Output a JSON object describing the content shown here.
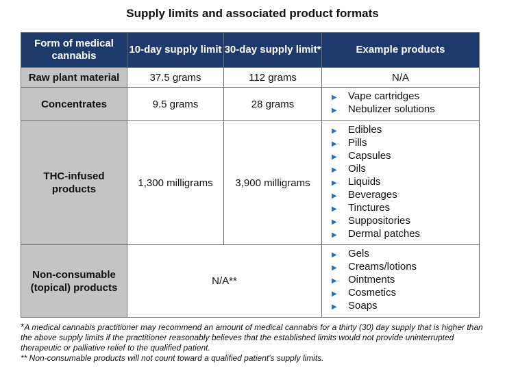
{
  "title": "Supply limits and associated product formats",
  "table": {
    "headers": {
      "form": "Form of medical cannabis",
      "ten_day": "10-day supply limit",
      "thirty_day": "30-day supply limit*",
      "examples": "Example products"
    },
    "rows": [
      {
        "form": "Raw plant material",
        "ten_day": "37.5 grams",
        "thirty_day": "112 grams",
        "examples_text": "N/A"
      },
      {
        "form": "Concentrates",
        "ten_day": "9.5 grams",
        "thirty_day": "28 grams",
        "products": [
          "Vape cartridges",
          "Nebulizer solutions"
        ]
      },
      {
        "form": "THC-infused products",
        "ten_day": "1,300 milligrams",
        "thirty_day": "3,900 milligrams",
        "products": [
          "Edibles",
          "Pills",
          "Capsules",
          "Oils",
          "Liquids",
          "Beverages",
          "Tinctures",
          "Suppositories",
          "Dermal patches"
        ]
      },
      {
        "form": "Non-consumable (topical) products",
        "limit_merged": "N/A**",
        "products": [
          "Gels",
          "Creams/lotions",
          "Ointments",
          "Cosmetics",
          "Soaps"
        ]
      }
    ]
  },
  "footnotes": {
    "asterisk_mark": "*",
    "note1": "A medical cannabis practitioner may recommend an amount of medical cannabis for a thirty (30) day supply that is higher than the above supply limits if the practitioner reasonably believes that the established limits would not provide uninterrupted therapeutic or palliative relief to the qualified patient.",
    "note2": "** Non-consumable products will not count toward a qualified patient's supply limits."
  },
  "bullet_glyph": "▶",
  "colors": {
    "header_bg": "#1e3a6b",
    "row_header_bg": "#c4c4c4",
    "bullet": "#2b6fb5"
  }
}
